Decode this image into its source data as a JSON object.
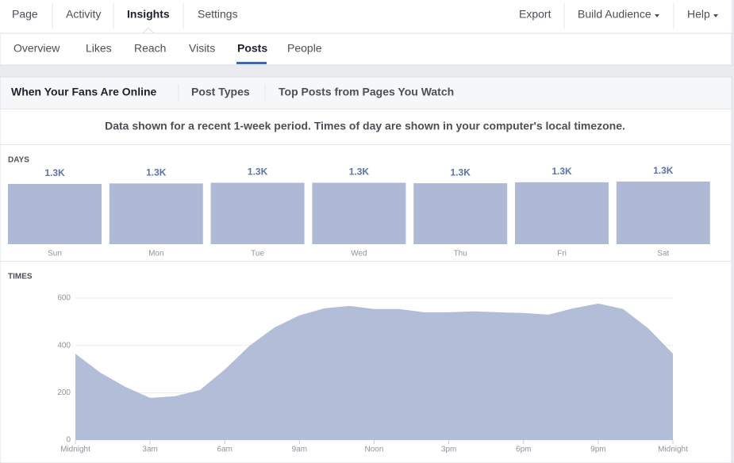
{
  "nav": {
    "left": [
      "Page",
      "Activity",
      "Insights",
      "Settings"
    ],
    "right": [
      "Export",
      "Build Audience",
      "Help"
    ]
  },
  "subnav": [
    "Overview",
    "Likes",
    "Reach",
    "Visits",
    "Posts",
    "People"
  ],
  "tabs": [
    "When Your Fans Are Online",
    "Post Types",
    "Top Posts from Pages You Watch"
  ],
  "notice": "Data shown for a recent 1-week period. Times of day are shown in your computer's local timezone.",
  "chart_data": [
    {
      "type": "bar",
      "title": "DAYS",
      "categories": [
        "Sun",
        "Mon",
        "Tue",
        "Wed",
        "Thu",
        "Fri",
        "Sat"
      ],
      "values": [
        1270,
        1280,
        1295,
        1295,
        1285,
        1305,
        1320
      ],
      "value_labels": [
        "1.3K",
        "1.3K",
        "1.3K",
        "1.3K",
        "1.3K",
        "1.3K",
        "1.3K"
      ],
      "color": "#aeb9d6"
    },
    {
      "type": "area",
      "title": "TIMES",
      "x": [
        0,
        1,
        2,
        3,
        4,
        5,
        6,
        7,
        8,
        9,
        10,
        11,
        12,
        13,
        14,
        15,
        16,
        17,
        18,
        19,
        20,
        21,
        22,
        23,
        24
      ],
      "values": [
        365,
        285,
        225,
        178,
        185,
        211,
        298,
        399,
        476,
        527,
        557,
        567,
        554,
        554,
        540,
        540,
        544,
        540,
        537,
        530,
        557,
        577,
        554,
        473,
        365
      ],
      "xlim": [
        0,
        24
      ],
      "xticks": [
        {
          "value": 0,
          "label": "Midnight"
        },
        {
          "value": 3,
          "label": "3am"
        },
        {
          "value": 6,
          "label": "6am"
        },
        {
          "value": 9,
          "label": "9am"
        },
        {
          "value": 12,
          "label": "Noon"
        },
        {
          "value": 15,
          "label": "3pm"
        },
        {
          "value": 18,
          "label": "6pm"
        },
        {
          "value": 21,
          "label": "9pm"
        },
        {
          "value": 24,
          "label": "Midnight"
        }
      ],
      "ylim": [
        0,
        600
      ],
      "yticks": [
        0,
        200,
        400,
        600
      ],
      "grid": true,
      "color": "#aeb9d6"
    }
  ]
}
